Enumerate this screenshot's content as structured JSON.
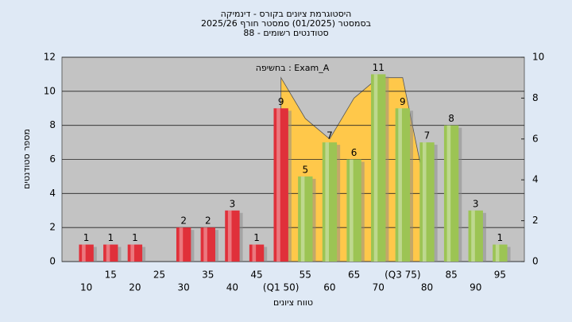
{
  "chart_data": {
    "type": "bar",
    "title": [
      "היסטוגרמת ציונים בקורס - דינמיקה",
      "בסמסטר  (01/2025)  סמסטר חורף 2025/26",
      "סטודנטים רשומים - 88"
    ],
    "annotation": "בחשיפה : Exam_A",
    "xlabel": "טווח ציונים",
    "ylabel": "מספר סטודנטים",
    "categories": [
      "10",
      "15",
      "20",
      "25",
      "30",
      "35",
      "40",
      "45",
      "(Q1 50)",
      "55",
      "60",
      "65",
      "70",
      "(Q3 75)",
      "80",
      "85",
      "90",
      "95"
    ],
    "values": [
      1,
      1,
      1,
      0,
      2,
      2,
      3,
      1,
      9,
      5,
      7,
      6,
      11,
      9,
      7,
      8,
      3,
      1
    ],
    "bar_colors": [
      "#e0303a",
      "#e0303a",
      "#e0303a",
      "#e0303a",
      "#e0303a",
      "#e0303a",
      "#e0303a",
      "#e0303a",
      "#e0303a",
      "#9cc454",
      "#9cc454",
      "#9cc454",
      "#9cc454",
      "#9cc454",
      "#9cc454",
      "#9cc454",
      "#9cc454",
      "#9cc454"
    ],
    "area": {
      "axis": "y2",
      "color": "#ffc84a",
      "values": [
        null,
        null,
        null,
        null,
        null,
        null,
        null,
        null,
        9,
        7,
        6,
        8,
        9,
        9,
        3.2,
        null,
        null,
        null
      ]
    },
    "ylim": [
      0,
      12
    ],
    "yticks": [
      0,
      2,
      4,
      6,
      8,
      10,
      12
    ],
    "y2lim": [
      0,
      10
    ],
    "y2ticks": [
      0,
      2,
      4,
      6,
      8,
      10
    ],
    "grid": true
  }
}
